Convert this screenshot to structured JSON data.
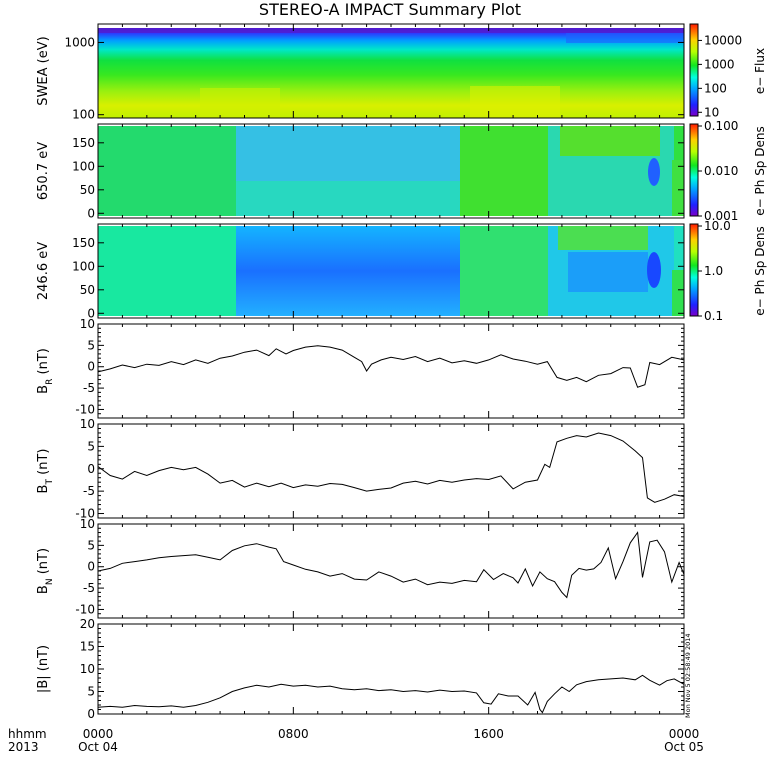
{
  "chart_data": {
    "title": "STEREO-A IMPACT Summary Plot",
    "xaxis": {
      "range_hours": [
        0,
        24
      ],
      "ticks": [
        {
          "hour": 0,
          "hhmm": "0000",
          "date": "Oct 04"
        },
        {
          "hour": 8,
          "hhmm": "0800",
          "date": ""
        },
        {
          "hour": 16,
          "hhmm": "1600",
          "date": ""
        },
        {
          "hour": 24,
          "hhmm": "0000",
          "date": "Oct 05"
        }
      ],
      "label_top": "hhmm",
      "label_bottom": "2013"
    },
    "stamp": "Mon Nov  5 02:58:49 2014",
    "panels": [
      {
        "name": "swea",
        "type": "heatmap",
        "ylabel": "SWEA (eV)",
        "yscale": "log",
        "ylim": [
          90,
          1800
        ],
        "yticks": [
          {
            "value": 100,
            "label": "100"
          },
          {
            "value": 1000,
            "label": "1000"
          }
        ],
        "colorbar": {
          "label": "e− Flux",
          "scale": "log",
          "range": [
            7,
            40000
          ],
          "ticks": [
            {
              "value": 10,
              "label": "10"
            },
            {
              "value": 100,
              "label": "100"
            },
            {
              "value": 1000,
              "label": "1000"
            },
            {
              "value": 10000,
              "label": "10000"
            }
          ]
        }
      },
      {
        "name": "pad650",
        "type": "heatmap",
        "ylabel": "650.7 eV",
        "yscale": "linear",
        "ylim": [
          -10,
          190
        ],
        "yticks": [
          {
            "value": 0,
            "label": "0"
          },
          {
            "value": 50,
            "label": "50"
          },
          {
            "value": 100,
            "label": "100"
          },
          {
            "value": 150,
            "label": "150"
          }
        ],
        "colorbar": {
          "label": "e− Ph Sp Dens",
          "scale": "log",
          "range": [
            0.001,
            0.1
          ],
          "ticks": [
            {
              "value": 0.001,
              "label": "0.001"
            },
            {
              "value": 0.01,
              "label": "0.010"
            },
            {
              "value": 0.1,
              "label": "0.100"
            }
          ]
        }
      },
      {
        "name": "pad246",
        "type": "heatmap",
        "ylabel": "246.6 eV",
        "yscale": "linear",
        "ylim": [
          -10,
          190
        ],
        "yticks": [
          {
            "value": 0,
            "label": "0"
          },
          {
            "value": 50,
            "label": "50"
          },
          {
            "value": 100,
            "label": "100"
          },
          {
            "value": 150,
            "label": "150"
          }
        ],
        "colorbar": {
          "label": "e− Ph Sp Dens",
          "scale": "log",
          "range": [
            0.1,
            10
          ],
          "ticks": [
            {
              "value": 0.1,
              "label": "0.1"
            },
            {
              "value": 1,
              "label": "1.0"
            },
            {
              "value": 10,
              "label": "10.0"
            }
          ]
        }
      },
      {
        "name": "br",
        "type": "line",
        "ylabel": "B",
        "ysub": "R",
        "yunit": " (nT)",
        "ylim": [
          -12,
          10
        ],
        "yticks": [
          -10,
          -5,
          0,
          5,
          10
        ],
        "series": [
          [
            0,
            -1.2
          ],
          [
            0.5,
            -0.5
          ],
          [
            1,
            0.4
          ],
          [
            1.5,
            -0.2
          ],
          [
            2,
            0.6
          ],
          [
            2.5,
            0.3
          ],
          [
            3,
            1.2
          ],
          [
            3.5,
            0.5
          ],
          [
            4,
            1.6
          ],
          [
            4.5,
            0.8
          ],
          [
            5,
            2.0
          ],
          [
            5.5,
            2.5
          ],
          [
            6,
            3.4
          ],
          [
            6.5,
            3.9
          ],
          [
            7,
            2.6
          ],
          [
            7.3,
            4.2
          ],
          [
            7.7,
            3.0
          ],
          [
            8,
            3.8
          ],
          [
            8.5,
            4.6
          ],
          [
            9,
            4.9
          ],
          [
            9.5,
            4.6
          ],
          [
            10,
            3.9
          ],
          [
            10.5,
            2.2
          ],
          [
            10.8,
            1.2
          ],
          [
            11,
            -1.0
          ],
          [
            11.2,
            0.6
          ],
          [
            11.6,
            1.6
          ],
          [
            12,
            2.2
          ],
          [
            12.5,
            1.7
          ],
          [
            13,
            2.4
          ],
          [
            13.5,
            1.2
          ],
          [
            14,
            2.0
          ],
          [
            14.5,
            0.9
          ],
          [
            15,
            1.4
          ],
          [
            15.5,
            0.8
          ],
          [
            16,
            1.6
          ],
          [
            16.5,
            2.8
          ],
          [
            17,
            1.8
          ],
          [
            17.5,
            1.3
          ],
          [
            18,
            0.6
          ],
          [
            18.4,
            1.2
          ],
          [
            18.8,
            -2.5
          ],
          [
            19.2,
            -3.2
          ],
          [
            19.6,
            -2.5
          ],
          [
            20,
            -3.5
          ],
          [
            20.5,
            -2.0
          ],
          [
            21,
            -1.6
          ],
          [
            21.5,
            -0.2
          ],
          [
            21.8,
            -0.3
          ],
          [
            22.1,
            -4.8
          ],
          [
            22.4,
            -4.2
          ],
          [
            22.6,
            1.0
          ],
          [
            23,
            0.5
          ],
          [
            23.5,
            2.2
          ],
          [
            24,
            1.6
          ]
        ]
      },
      {
        "name": "bt",
        "type": "line",
        "ylabel": "B",
        "ysub": "T",
        "yunit": " (nT)",
        "ylim": [
          -11,
          10
        ],
        "yticks": [
          -10,
          -5,
          0,
          5,
          10
        ],
        "series": [
          [
            0,
            0.5
          ],
          [
            0.5,
            -1.5
          ],
          [
            1,
            -2.3
          ],
          [
            1.5,
            -0.6
          ],
          [
            2,
            -1.5
          ],
          [
            2.5,
            -0.4
          ],
          [
            3,
            0.3
          ],
          [
            3.5,
            -0.2
          ],
          [
            4,
            0.3
          ],
          [
            4.5,
            -1.2
          ],
          [
            5,
            -3.2
          ],
          [
            5.5,
            -2.6
          ],
          [
            6,
            -4.1
          ],
          [
            6.5,
            -3.2
          ],
          [
            7,
            -4.0
          ],
          [
            7.5,
            -3.2
          ],
          [
            8,
            -4.2
          ],
          [
            8.5,
            -3.6
          ],
          [
            9,
            -3.9
          ],
          [
            9.5,
            -3.3
          ],
          [
            10,
            -3.5
          ],
          [
            10.5,
            -4.2
          ],
          [
            11,
            -5.0
          ],
          [
            11.5,
            -4.6
          ],
          [
            12,
            -4.3
          ],
          [
            12.5,
            -3.2
          ],
          [
            13,
            -2.8
          ],
          [
            13.5,
            -3.4
          ],
          [
            14,
            -2.6
          ],
          [
            14.5,
            -3.0
          ],
          [
            15,
            -2.5
          ],
          [
            15.5,
            -2.2
          ],
          [
            16,
            -2.4
          ],
          [
            16.5,
            -1.6
          ],
          [
            17,
            -4.5
          ],
          [
            17.5,
            -3.0
          ],
          [
            18,
            -2.5
          ],
          [
            18.3,
            1.0
          ],
          [
            18.5,
            0.3
          ],
          [
            18.8,
            6.0
          ],
          [
            19.2,
            6.8
          ],
          [
            19.6,
            7.4
          ],
          [
            20,
            7.1
          ],
          [
            20.5,
            8.0
          ],
          [
            21,
            7.4
          ],
          [
            21.5,
            6.2
          ],
          [
            22,
            4.0
          ],
          [
            22.3,
            2.5
          ],
          [
            22.5,
            -6.5
          ],
          [
            22.8,
            -7.5
          ],
          [
            23.2,
            -6.8
          ],
          [
            23.6,
            -5.8
          ],
          [
            24,
            -6.2
          ]
        ]
      },
      {
        "name": "bn",
        "type": "line",
        "ylabel": "B",
        "ysub": "N",
        "yunit": " (nT)",
        "ylim": [
          -12,
          10
        ],
        "yticks": [
          -10,
          -5,
          0,
          5,
          10
        ],
        "series": [
          [
            0,
            -1.0
          ],
          [
            0.5,
            -0.4
          ],
          [
            1,
            0.8
          ],
          [
            1.5,
            1.2
          ],
          [
            2,
            1.6
          ],
          [
            2.5,
            2.1
          ],
          [
            3,
            2.4
          ],
          [
            3.5,
            2.6
          ],
          [
            4,
            2.8
          ],
          [
            4.5,
            2.2
          ],
          [
            5,
            1.6
          ],
          [
            5.5,
            3.8
          ],
          [
            6,
            4.9
          ],
          [
            6.5,
            5.4
          ],
          [
            7,
            4.6
          ],
          [
            7.3,
            4.2
          ],
          [
            7.6,
            1.2
          ],
          [
            8,
            0.4
          ],
          [
            8.5,
            -0.6
          ],
          [
            9,
            -1.2
          ],
          [
            9.5,
            -2.2
          ],
          [
            10,
            -1.6
          ],
          [
            10.5,
            -2.9
          ],
          [
            11,
            -3.1
          ],
          [
            11.5,
            -1.2
          ],
          [
            12,
            -2.2
          ],
          [
            12.5,
            -3.6
          ],
          [
            13,
            -2.9
          ],
          [
            13.5,
            -4.2
          ],
          [
            14,
            -3.6
          ],
          [
            14.5,
            -3.9
          ],
          [
            15,
            -3.2
          ],
          [
            15.5,
            -3.5
          ],
          [
            15.8,
            -0.7
          ],
          [
            16.2,
            -3.0
          ],
          [
            16.6,
            -1.6
          ],
          [
            17,
            -2.6
          ],
          [
            17.2,
            -3.8
          ],
          [
            17.5,
            -0.5
          ],
          [
            17.8,
            -4.5
          ],
          [
            18.1,
            -1.2
          ],
          [
            18.4,
            -2.8
          ],
          [
            18.7,
            -3.5
          ],
          [
            19,
            -6.0
          ],
          [
            19.2,
            -7.2
          ],
          [
            19.4,
            -2.0
          ],
          [
            19.7,
            -0.4
          ],
          [
            20,
            -0.8
          ],
          [
            20.3,
            -0.5
          ],
          [
            20.6,
            1.0
          ],
          [
            20.9,
            4.4
          ],
          [
            21.2,
            -2.8
          ],
          [
            21.5,
            1.2
          ],
          [
            21.8,
            5.6
          ],
          [
            22.1,
            8.0
          ],
          [
            22.3,
            -2.5
          ],
          [
            22.6,
            5.8
          ],
          [
            22.9,
            6.2
          ],
          [
            23.2,
            3.5
          ],
          [
            23.5,
            -3.6
          ],
          [
            23.8,
            1.0
          ],
          [
            24,
            -1.8
          ]
        ]
      },
      {
        "name": "bmag",
        "type": "line",
        "ylabel": "|B| (nT)",
        "ylim": [
          0,
          20
        ],
        "yticks": [
          0,
          5,
          10,
          15,
          20
        ],
        "series": [
          [
            0,
            1.5
          ],
          [
            0.5,
            1.7
          ],
          [
            1,
            1.5
          ],
          [
            1.5,
            1.9
          ],
          [
            2,
            1.7
          ],
          [
            2.5,
            1.6
          ],
          [
            3,
            1.8
          ],
          [
            3.5,
            1.5
          ],
          [
            4,
            1.9
          ],
          [
            4.5,
            2.6
          ],
          [
            5,
            3.6
          ],
          [
            5.5,
            5.0
          ],
          [
            6,
            5.8
          ],
          [
            6.5,
            6.4
          ],
          [
            7,
            6.0
          ],
          [
            7.5,
            6.6
          ],
          [
            8,
            6.2
          ],
          [
            8.5,
            6.4
          ],
          [
            9,
            6.0
          ],
          [
            9.5,
            6.2
          ],
          [
            10,
            5.6
          ],
          [
            10.5,
            5.4
          ],
          [
            11,
            5.6
          ],
          [
            11.5,
            5.2
          ],
          [
            12,
            5.4
          ],
          [
            12.5,
            5.0
          ],
          [
            13,
            5.2
          ],
          [
            13.5,
            4.9
          ],
          [
            14,
            5.3
          ],
          [
            14.5,
            5.0
          ],
          [
            15,
            5.1
          ],
          [
            15.5,
            4.7
          ],
          [
            15.8,
            2.5
          ],
          [
            16.1,
            2.2
          ],
          [
            16.4,
            4.5
          ],
          [
            16.8,
            4.0
          ],
          [
            17.2,
            4.0
          ],
          [
            17.6,
            2.0
          ],
          [
            17.9,
            4.8
          ],
          [
            18.1,
            1.0
          ],
          [
            18.2,
            0.3
          ],
          [
            18.4,
            2.8
          ],
          [
            18.7,
            4.5
          ],
          [
            19,
            6.0
          ],
          [
            19.3,
            5.0
          ],
          [
            19.6,
            6.5
          ],
          [
            20,
            7.2
          ],
          [
            20.5,
            7.6
          ],
          [
            21,
            7.8
          ],
          [
            21.5,
            8.0
          ],
          [
            22,
            7.6
          ],
          [
            22.3,
            8.6
          ],
          [
            22.6,
            7.5
          ],
          [
            23,
            6.4
          ],
          [
            23.3,
            7.4
          ],
          [
            23.6,
            7.8
          ],
          [
            24,
            6.6
          ]
        ]
      }
    ]
  }
}
